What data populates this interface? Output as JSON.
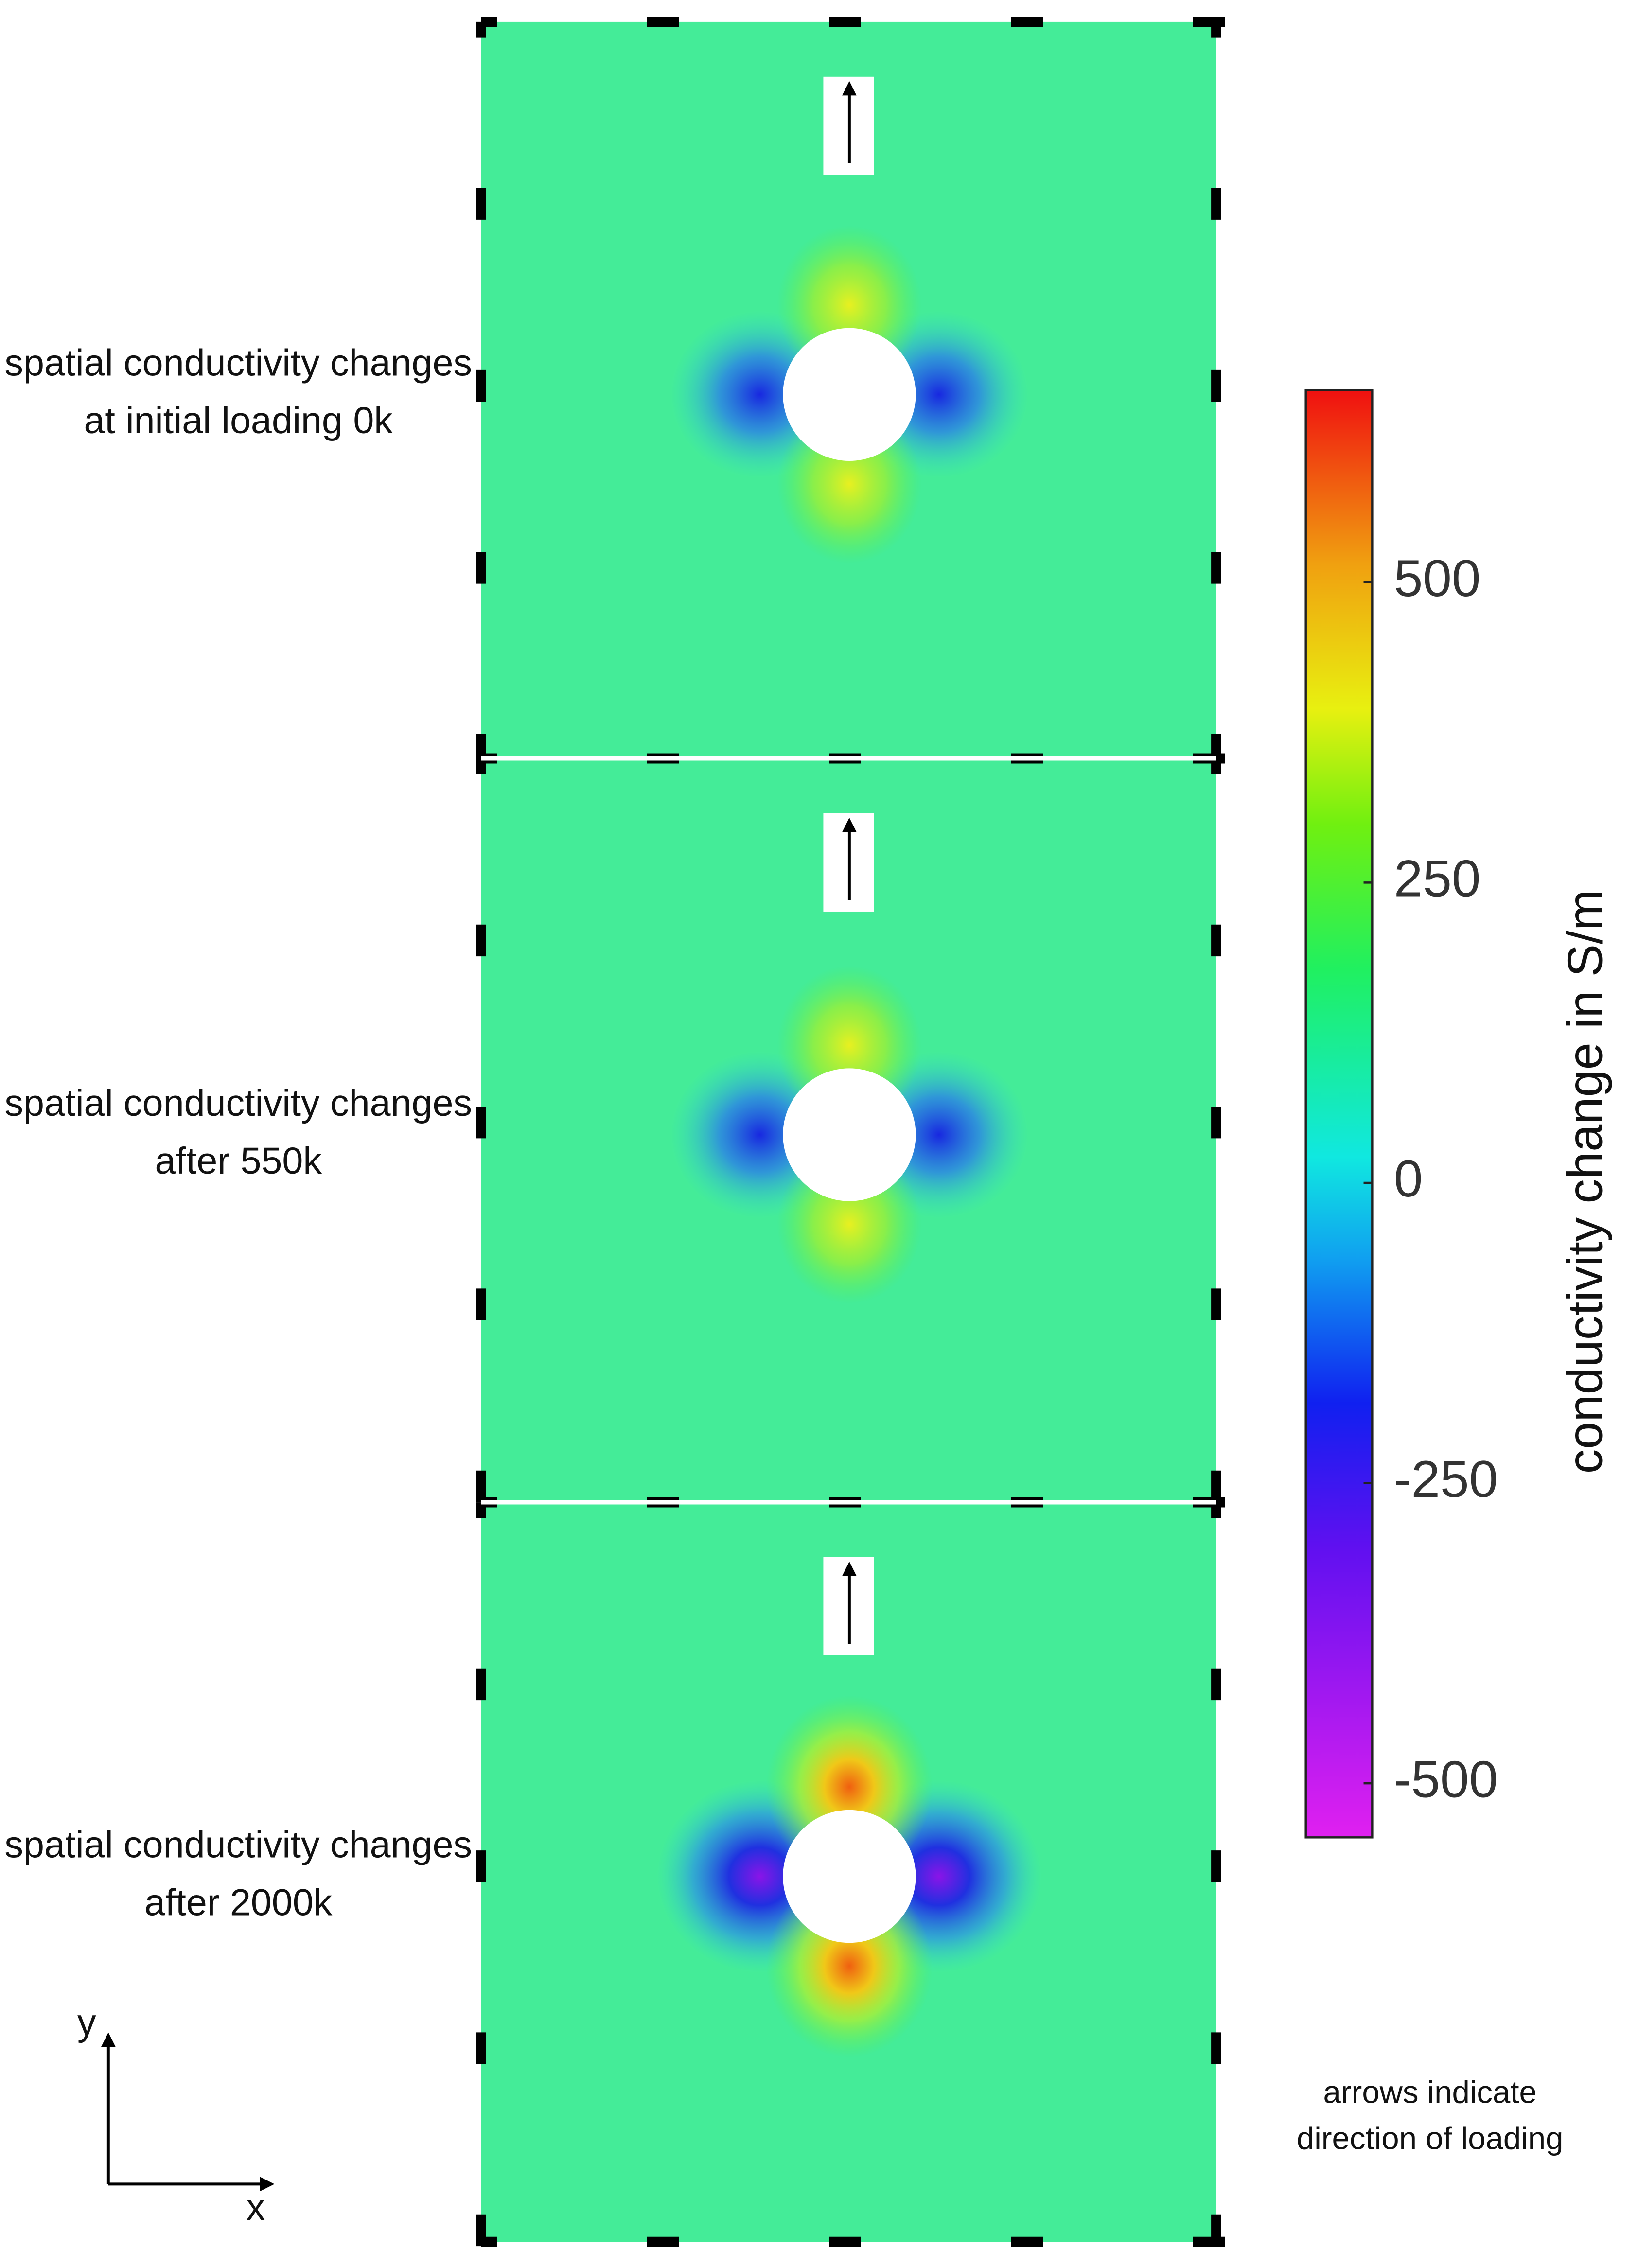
{
  "panels": [
    {
      "label_lines": [
        "spatial conductivity changes",
        "at initial loading 0k"
      ]
    },
    {
      "label_lines": [
        "spatial conductivity changes",
        "after 550k"
      ]
    },
    {
      "label_lines": [
        "spatial conductivity changes",
        "after 2000k"
      ]
    }
  ],
  "colorbar": {
    "title": "conductivity change in S/m",
    "lim": [
      -545,
      660
    ],
    "ticks": [
      500,
      250,
      0,
      -250,
      -500
    ]
  },
  "note_lines": [
    "arrows indicate",
    "direction of loading"
  ],
  "axes": {
    "x": "x",
    "y": "y"
  }
}
